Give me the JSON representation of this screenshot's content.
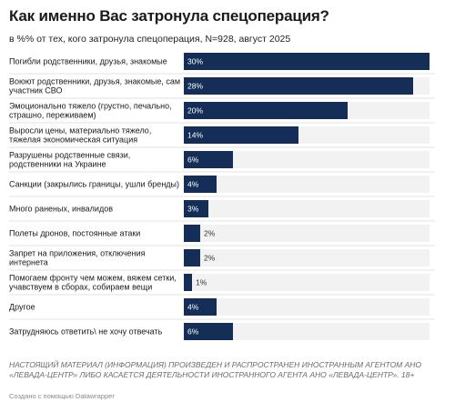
{
  "header": {
    "title": "Как именно Вас затронула спецоперация?",
    "subtitle": "в %% от тех, кого затронула спецоперация, N=928, август 2025"
  },
  "colors": {
    "bar": "#152e57",
    "track": "#f2f2f2",
    "divider": "#e3e3e3"
  },
  "chart_data": {
    "type": "bar",
    "orientation": "horizontal",
    "title": "Как именно Вас затронула спецоперация?",
    "subtitle": "в %% от тех, кого затронула спецоперация, N=928, август 2025",
    "value_suffix": "%",
    "xlim": [
      0,
      30
    ],
    "categories": [
      [
        "Погибли родственники, друзья, знакомые"
      ],
      [
        "Воюют родственники, друзья, знакомые, сам",
        "участник СВО"
      ],
      [
        "Эмоционально тяжело (грустно, печально,",
        "страшно, переживаем)"
      ],
      [
        "Выросли цены, материально тяжело,",
        "тяжелая экономическая ситуация"
      ],
      [
        "Разрушены родственные связи,",
        "родственники на Украине"
      ],
      [
        "Санкции (закрылись границы, ушли бренды)"
      ],
      [
        "Много раненых, инвалидов"
      ],
      [
        "Полеты дронов, постоянные атаки"
      ],
      [
        "Запрет на приложения, отключения",
        "интернета"
      ],
      [
        "Помогаем фронту чем можем, вяжем сетки,",
        "учавствуем в сборах, собираем вещи"
      ],
      [
        "Другое"
      ],
      [
        "Затрудняюсь ответить\\ не хочу отвечать"
      ]
    ],
    "values": [
      30,
      28,
      20,
      14,
      6,
      4,
      3,
      2,
      2,
      1,
      4,
      6
    ]
  },
  "footer": {
    "note": "Настоящий материал (информация) произведен и распространен иностранным агентом АНО «Левада-Центр» либо касается деятельности иностранного агента АНО «Левада-Центр». 18+",
    "credit": "Создано с помощью Datawrapper"
  }
}
